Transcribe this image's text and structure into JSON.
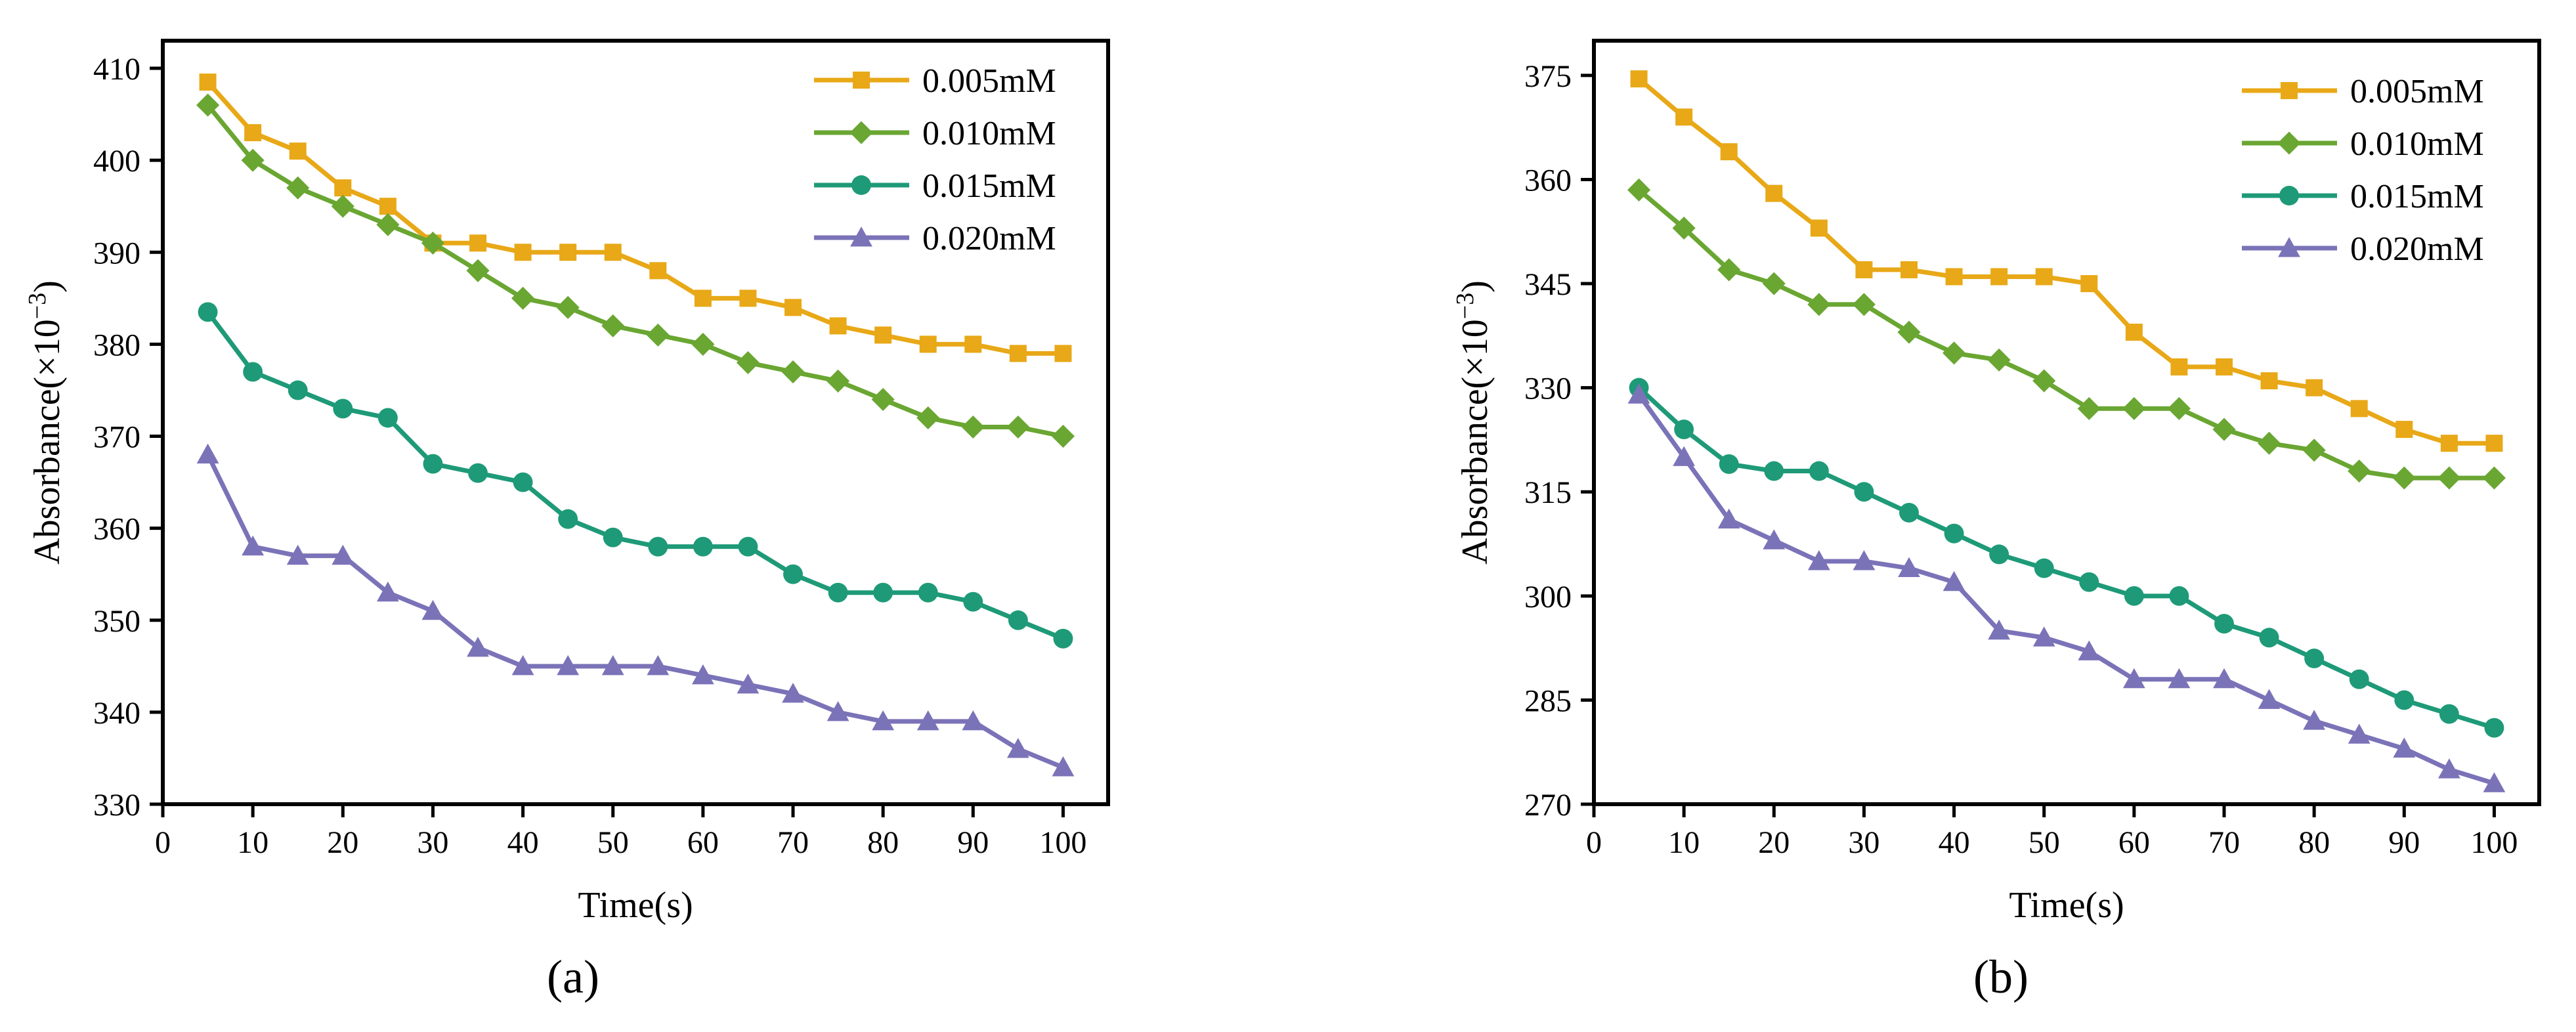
{
  "figure": {
    "panel_a_caption": "(a)",
    "panel_b_caption": "(b)"
  },
  "chart_data": [
    {
      "type": "line",
      "panel": "(a)",
      "xlabel": "Time(s)",
      "ylabel": "Absorbance(×10",
      "ylabel_exp": "−3",
      "ylabel_close": ")",
      "xlim": [
        0,
        105
      ],
      "ylim": [
        330,
        413
      ],
      "xticks": [
        0,
        10,
        20,
        30,
        40,
        50,
        60,
        70,
        80,
        90,
        100
      ],
      "yticks": [
        330,
        340,
        350,
        360,
        370,
        380,
        390,
        400,
        410
      ],
      "x": [
        5,
        10,
        15,
        20,
        25,
        30,
        35,
        40,
        45,
        50,
        55,
        60,
        65,
        70,
        75,
        80,
        85,
        90,
        95,
        100
      ],
      "legend_position": "top-right",
      "series": [
        {
          "name": "0.005mM",
          "color": "#E8A817",
          "marker": "square",
          "values": [
            408.5,
            403,
            401,
            397,
            395,
            391,
            391,
            390,
            390,
            390,
            388,
            385,
            385,
            384,
            382,
            381,
            380,
            380,
            379,
            379
          ]
        },
        {
          "name": "0.010mM",
          "color": "#6AA632",
          "marker": "diamond",
          "values": [
            406,
            400,
            397,
            395,
            393,
            391,
            388,
            385,
            384,
            382,
            381,
            380,
            378,
            377,
            376,
            374,
            372,
            371,
            371,
            370
          ]
        },
        {
          "name": "0.015mM",
          "color": "#1E9A78",
          "marker": "circle",
          "values": [
            383.5,
            377,
            375,
            373,
            372,
            367,
            366,
            365,
            361,
            359,
            358,
            358,
            358,
            355,
            353,
            353,
            353,
            352,
            350,
            348
          ]
        },
        {
          "name": "0.020mM",
          "color": "#7B73B8",
          "marker": "triangle",
          "values": [
            368,
            358,
            357,
            357,
            353,
            351,
            347,
            345,
            345,
            345,
            345,
            344,
            343,
            342,
            340,
            339,
            339,
            339,
            336,
            334
          ]
        }
      ]
    },
    {
      "type": "line",
      "panel": "(b)",
      "xlabel": "Time(s)",
      "ylabel": "Absorbance(×10",
      "ylabel_exp": "−3",
      "ylabel_close": ")",
      "xlim": [
        0,
        105
      ],
      "ylim": [
        270,
        380
      ],
      "xticks": [
        0,
        10,
        20,
        30,
        40,
        50,
        60,
        70,
        80,
        90,
        100
      ],
      "yticks": [
        270,
        285,
        300,
        315,
        330,
        345,
        360,
        375
      ],
      "x": [
        5,
        10,
        15,
        20,
        25,
        30,
        35,
        40,
        45,
        50,
        55,
        60,
        65,
        70,
        75,
        80,
        85,
        90,
        95,
        100
      ],
      "legend_position": "top-right",
      "series": [
        {
          "name": "0.005mM",
          "color": "#E8A817",
          "marker": "square",
          "values": [
            374.5,
            369,
            364,
            358,
            353,
            347,
            347,
            346,
            346,
            346,
            345,
            338,
            333,
            333,
            331,
            330,
            327,
            324,
            322,
            322
          ]
        },
        {
          "name": "0.010mM",
          "color": "#6AA632",
          "marker": "diamond",
          "values": [
            358.5,
            353,
            347,
            345,
            342,
            342,
            338,
            335,
            334,
            331,
            327,
            327,
            327,
            324,
            322,
            321,
            318,
            317,
            317,
            317
          ]
        },
        {
          "name": "0.015mM",
          "color": "#1E9A78",
          "marker": "circle",
          "values": [
            330,
            324,
            319,
            318,
            318,
            315,
            312,
            309,
            306,
            304,
            302,
            300,
            300,
            296,
            294,
            291,
            288,
            285,
            283,
            281
          ]
        },
        {
          "name": "0.020mM",
          "color": "#7B73B8",
          "marker": "triangle",
          "values": [
            329,
            320,
            311,
            308,
            305,
            305,
            304,
            302,
            295,
            294,
            292,
            288,
            288,
            288,
            285,
            282,
            280,
            278,
            275,
            273
          ]
        }
      ]
    }
  ]
}
